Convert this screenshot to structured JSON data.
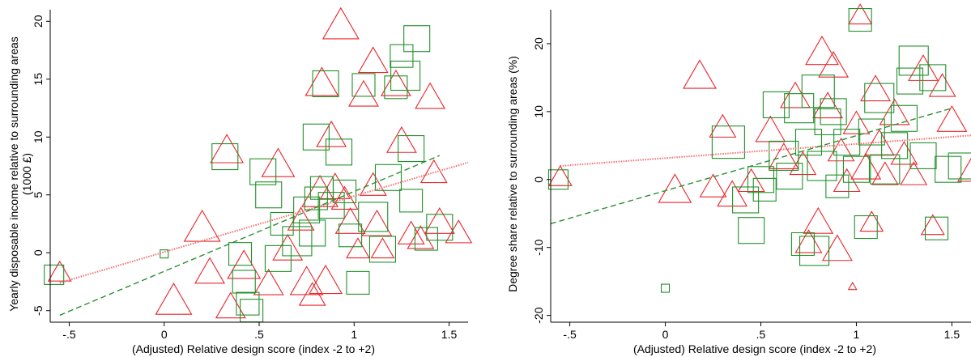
{
  "colors": {
    "triangle": "#e8262a",
    "square": "#21902a",
    "fit_dotted": "#f07070",
    "fit_dashed": "#2a9030"
  },
  "chart_data": [
    {
      "type": "scatter",
      "title": "",
      "xlabel": "(Adjusted) Relative design score (index -2 to +2)",
      "ylabel_lines": [
        "Yearly disposable income relative to surrounding areas",
        "(1000 £)"
      ],
      "xlim": [
        -0.6,
        1.6
      ],
      "ylim": [
        -6,
        21
      ],
      "xticks": [
        -0.5,
        0,
        0.5,
        1,
        1.5
      ],
      "xtick_labels": [
        "-.5",
        "0",
        ".5",
        "1",
        "1.5"
      ],
      "yticks": [
        -5,
        0,
        5,
        10,
        15,
        20
      ],
      "ytick_labels": [
        "-5",
        "0",
        "5",
        "10",
        "15",
        "20"
      ],
      "grid": false,
      "series": [
        {
          "marker": "triangle",
          "color": "#e8262a",
          "points": [
            {
              "x": -0.55,
              "y": -1.8,
              "s": 14
            },
            {
              "x": 0.05,
              "y": -4.3,
              "s": 22
            },
            {
              "x": 0.2,
              "y": 2.0,
              "s": 22
            },
            {
              "x": 0.24,
              "y": -1.8,
              "s": 18
            },
            {
              "x": 0.33,
              "y": 8.7,
              "s": 20
            },
            {
              "x": 0.35,
              "y": -4.8,
              "s": 18
            },
            {
              "x": 0.42,
              "y": -1.3,
              "s": 20
            },
            {
              "x": 0.55,
              "y": -2.8,
              "s": 18
            },
            {
              "x": 0.6,
              "y": 7.5,
              "s": 20
            },
            {
              "x": 0.65,
              "y": 0.2,
              "s": 18
            },
            {
              "x": 0.72,
              "y": 2.7,
              "s": 16
            },
            {
              "x": 0.75,
              "y": -2.7,
              "s": 20
            },
            {
              "x": 0.78,
              "y": -3.8,
              "s": 16
            },
            {
              "x": 0.82,
              "y": 5.0,
              "s": 22
            },
            {
              "x": 0.83,
              "y": 14.5,
              "s": 20
            },
            {
              "x": 0.85,
              "y": -2.6,
              "s": 20
            },
            {
              "x": 0.88,
              "y": 10.0,
              "s": 18
            },
            {
              "x": 0.9,
              "y": 5.5,
              "s": 18
            },
            {
              "x": 0.93,
              "y": 19.5,
              "s": 22
            },
            {
              "x": 0.95,
              "y": 4.5,
              "s": 16
            },
            {
              "x": 0.98,
              "y": 2.5,
              "s": 18
            },
            {
              "x": 1.02,
              "y": 0.2,
              "s": 14
            },
            {
              "x": 1.05,
              "y": 13.5,
              "s": 18
            },
            {
              "x": 1.1,
              "y": 16.4,
              "s": 18
            },
            {
              "x": 1.1,
              "y": 5.7,
              "s": 16
            },
            {
              "x": 1.12,
              "y": 2.3,
              "s": 18
            },
            {
              "x": 1.15,
              "y": 0.2,
              "s": 14
            },
            {
              "x": 1.22,
              "y": 14.4,
              "s": 18
            },
            {
              "x": 1.25,
              "y": 9.5,
              "s": 18
            },
            {
              "x": 1.3,
              "y": 1.5,
              "s": 16
            },
            {
              "x": 1.35,
              "y": 1.1,
              "s": 16
            },
            {
              "x": 1.4,
              "y": 13.3,
              "s": 18
            },
            {
              "x": 1.42,
              "y": 6.8,
              "s": 16
            },
            {
              "x": 1.45,
              "y": 2.5,
              "s": 18
            },
            {
              "x": 1.55,
              "y": 1.6,
              "s": 16
            }
          ]
        },
        {
          "marker": "square",
          "color": "#21902a",
          "points": [
            {
              "x": -0.58,
              "y": -1.9,
              "s": 12
            },
            {
              "x": 0.0,
              "y": -0.1,
              "s": 5
            },
            {
              "x": 0.32,
              "y": 8.3,
              "s": 16
            },
            {
              "x": 0.4,
              "y": -0.1,
              "s": 14
            },
            {
              "x": 0.42,
              "y": -2.5,
              "s": 14
            },
            {
              "x": 0.44,
              "y": -4.4,
              "s": 14
            },
            {
              "x": 0.46,
              "y": -5.0,
              "s": 14
            },
            {
              "x": 0.52,
              "y": 7.0,
              "s": 16
            },
            {
              "x": 0.55,
              "y": 5.0,
              "s": 16
            },
            {
              "x": 0.6,
              "y": -0.5,
              "s": 16
            },
            {
              "x": 0.62,
              "y": 2.5,
              "s": 14
            },
            {
              "x": 0.7,
              "y": 1.0,
              "s": 18
            },
            {
              "x": 0.75,
              "y": 3.7,
              "s": 16
            },
            {
              "x": 0.78,
              "y": 1.7,
              "s": 16
            },
            {
              "x": 0.8,
              "y": 4.7,
              "s": 14
            },
            {
              "x": 0.8,
              "y": 10.0,
              "s": 16
            },
            {
              "x": 0.83,
              "y": 5.6,
              "s": 14
            },
            {
              "x": 0.85,
              "y": 14.6,
              "s": 16
            },
            {
              "x": 0.88,
              "y": 4.1,
              "s": 16
            },
            {
              "x": 0.92,
              "y": 8.7,
              "s": 16
            },
            {
              "x": 0.95,
              "y": 5.3,
              "s": 14
            },
            {
              "x": 0.98,
              "y": 1.5,
              "s": 14
            },
            {
              "x": 1.02,
              "y": -2.6,
              "s": 14
            },
            {
              "x": 1.05,
              "y": 14.5,
              "s": 14
            },
            {
              "x": 1.1,
              "y": 3.1,
              "s": 18
            },
            {
              "x": 1.15,
              "y": 0.3,
              "s": 16
            },
            {
              "x": 1.18,
              "y": 6.5,
              "s": 16
            },
            {
              "x": 1.22,
              "y": 14.3,
              "s": 14
            },
            {
              "x": 1.25,
              "y": 17.0,
              "s": 14
            },
            {
              "x": 1.27,
              "y": 15.3,
              "s": 18
            },
            {
              "x": 1.3,
              "y": 9.0,
              "s": 16
            },
            {
              "x": 1.3,
              "y": 4.5,
              "s": 14
            },
            {
              "x": 1.33,
              "y": 18.5,
              "s": 16
            },
            {
              "x": 1.38,
              "y": 1.2,
              "s": 14
            },
            {
              "x": 1.45,
              "y": 2.2,
              "s": 16
            }
          ]
        }
      ],
      "fit_lines": [
        {
          "style": "dotted",
          "color": "#f07070",
          "x": [
            -0.55,
            1.6
          ],
          "y": [
            -2.6,
            7.8
          ]
        },
        {
          "style": "dashed",
          "color": "#2a9030",
          "x": [
            -0.55,
            1.45
          ],
          "y": [
            -5.4,
            8.4
          ]
        }
      ]
    },
    {
      "type": "scatter",
      "title": "",
      "xlabel": "(Adjusted) Relative design score (index -2 to +2)",
      "ylabel_lines": [
        "Degree share relative to surrounding areas (%)"
      ],
      "xlim": [
        -0.6,
        1.6
      ],
      "ylim": [
        -21,
        25
      ],
      "xticks": [
        -0.5,
        0,
        0.5,
        1,
        1.5
      ],
      "xtick_labels": [
        "-.5",
        "0",
        ".5",
        "1",
        "1.5"
      ],
      "yticks": [
        -20,
        -10,
        0,
        10,
        20
      ],
      "ytick_labels": [
        "-20",
        "-10",
        "0",
        "10",
        "20"
      ],
      "grid": false,
      "series": [
        {
          "marker": "triangle",
          "color": "#e8262a",
          "points": [
            {
              "x": -0.55,
              "y": 0.2,
              "s": 14
            },
            {
              "x": 0.05,
              "y": -1.8,
              "s": 20
            },
            {
              "x": 0.18,
              "y": 15.0,
              "s": 20
            },
            {
              "x": 0.25,
              "y": -1.3,
              "s": 16
            },
            {
              "x": 0.3,
              "y": 7.5,
              "s": 16
            },
            {
              "x": 0.35,
              "y": -2.5,
              "s": 18
            },
            {
              "x": 0.45,
              "y": -0.5,
              "s": 16
            },
            {
              "x": 0.55,
              "y": 7.0,
              "s": 18
            },
            {
              "x": 0.62,
              "y": 3.0,
              "s": 18
            },
            {
              "x": 0.68,
              "y": 12.0,
              "s": 18
            },
            {
              "x": 0.72,
              "y": 2.0,
              "s": 16
            },
            {
              "x": 0.75,
              "y": -9.5,
              "s": 16
            },
            {
              "x": 0.8,
              "y": -6.5,
              "s": 18
            },
            {
              "x": 0.82,
              "y": 18.5,
              "s": 20
            },
            {
              "x": 0.85,
              "y": 10.5,
              "s": 18
            },
            {
              "x": 0.88,
              "y": 16.5,
              "s": 18
            },
            {
              "x": 0.9,
              "y": -10.5,
              "s": 18
            },
            {
              "x": 0.92,
              "y": 4.0,
              "s": 16
            },
            {
              "x": 0.95,
              "y": -0.5,
              "s": 16
            },
            {
              "x": 0.98,
              "y": -15.8,
              "s": 5
            },
            {
              "x": 1.0,
              "y": 8.0,
              "s": 16
            },
            {
              "x": 1.02,
              "y": 24.0,
              "s": 14
            },
            {
              "x": 1.05,
              "y": 1.5,
              "s": 18
            },
            {
              "x": 1.08,
              "y": -6.5,
              "s": 14
            },
            {
              "x": 1.1,
              "y": 13.0,
              "s": 18
            },
            {
              "x": 1.12,
              "y": 5.0,
              "s": 18
            },
            {
              "x": 1.15,
              "y": 0.5,
              "s": 16
            },
            {
              "x": 1.2,
              "y": 9.5,
              "s": 18
            },
            {
              "x": 1.25,
              "y": 3.5,
              "s": 16
            },
            {
              "x": 1.3,
              "y": 0.5,
              "s": 16
            },
            {
              "x": 1.35,
              "y": 16.0,
              "s": 18
            },
            {
              "x": 1.4,
              "y": -7.0,
              "s": 14
            },
            {
              "x": 1.45,
              "y": 13.5,
              "s": 16
            },
            {
              "x": 1.5,
              "y": 8.5,
              "s": 18
            },
            {
              "x": 1.6,
              "y": 1.0,
              "s": 16
            }
          ]
        },
        {
          "marker": "square",
          "color": "#21902a",
          "points": [
            {
              "x": -0.56,
              "y": 0.0,
              "s": 12
            },
            {
              "x": 0.0,
              "y": -16.0,
              "s": 5
            },
            {
              "x": 0.33,
              "y": 5.5,
              "s": 20
            },
            {
              "x": 0.42,
              "y": -3.0,
              "s": 16
            },
            {
              "x": 0.45,
              "y": -7.5,
              "s": 16
            },
            {
              "x": 0.5,
              "y": 0.0,
              "s": 16
            },
            {
              "x": 0.52,
              "y": -1.5,
              "s": 14
            },
            {
              "x": 0.58,
              "y": 11.0,
              "s": 16
            },
            {
              "x": 0.62,
              "y": 3.5,
              "s": 18
            },
            {
              "x": 0.65,
              "y": 0.5,
              "s": 16
            },
            {
              "x": 0.7,
              "y": 10.5,
              "s": 18
            },
            {
              "x": 0.72,
              "y": -9.5,
              "s": 14
            },
            {
              "x": 0.75,
              "y": 5.5,
              "s": 16
            },
            {
              "x": 0.78,
              "y": -10.5,
              "s": 18
            },
            {
              "x": 0.8,
              "y": 13.0,
              "s": 20
            },
            {
              "x": 0.82,
              "y": 2.0,
              "s": 18
            },
            {
              "x": 0.85,
              "y": 8.5,
              "s": 16
            },
            {
              "x": 0.88,
              "y": 10.0,
              "s": 16
            },
            {
              "x": 0.9,
              "y": -1.0,
              "s": 14
            },
            {
              "x": 0.95,
              "y": 5.5,
              "s": 16
            },
            {
              "x": 1.0,
              "y": 1.5,
              "s": 16
            },
            {
              "x": 1.02,
              "y": 23.5,
              "s": 14
            },
            {
              "x": 1.05,
              "y": -7.0,
              "s": 14
            },
            {
              "x": 1.08,
              "y": 7.0,
              "s": 16
            },
            {
              "x": 1.12,
              "y": 12.0,
              "s": 18
            },
            {
              "x": 1.15,
              "y": 1.5,
              "s": 18
            },
            {
              "x": 1.2,
              "y": 5.0,
              "s": 16
            },
            {
              "x": 1.25,
              "y": 9.0,
              "s": 16
            },
            {
              "x": 1.28,
              "y": 14.5,
              "s": 16
            },
            {
              "x": 1.3,
              "y": 17.5,
              "s": 18
            },
            {
              "x": 1.35,
              "y": 3.5,
              "s": 16
            },
            {
              "x": 1.4,
              "y": 15.0,
              "s": 16
            },
            {
              "x": 1.42,
              "y": -7.2,
              "s": 14
            },
            {
              "x": 1.48,
              "y": 1.5,
              "s": 16
            },
            {
              "x": 1.55,
              "y": 2.0,
              "s": 16
            }
          ]
        }
      ],
      "fit_lines": [
        {
          "style": "dotted",
          "color": "#f07070",
          "x": [
            -0.55,
            1.6
          ],
          "y": [
            2.0,
            6.5
          ]
        },
        {
          "style": "dashed",
          "color": "#2a9030",
          "x": [
            -0.6,
            1.5
          ],
          "y": [
            -6.5,
            10.5
          ]
        }
      ]
    }
  ]
}
